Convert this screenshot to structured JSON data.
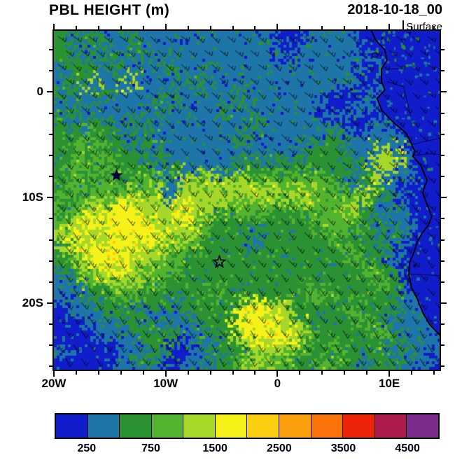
{
  "header": {
    "title": "PBL HEIGHT (m)",
    "datetime": "2018-10-18_00",
    "level": "Surface"
  },
  "axes": {
    "x_ticks": [
      {
        "label": "20W",
        "lon": -20
      },
      {
        "label": "10W",
        "lon": -10
      },
      {
        "label": "0",
        "lon": 0
      },
      {
        "label": "10E",
        "lon": 10
      }
    ],
    "y_ticks": [
      {
        "label": "0",
        "lat": 0
      },
      {
        "label": "10S",
        "lat": -10
      },
      {
        "label": "20S",
        "lat": -20
      }
    ],
    "minor_x_lons": [
      -18,
      -16,
      -14,
      -12,
      -8,
      -6,
      -4,
      -2,
      2,
      4,
      6,
      8,
      12,
      14
    ],
    "minor_y_lats": [
      4,
      2,
      -2,
      -4,
      -6,
      -8,
      -12,
      -14,
      -16,
      -18,
      -22,
      -24,
      -26
    ],
    "lon_range": [
      -20,
      14.5
    ],
    "lat_range": [
      -26.3,
      5.8
    ]
  },
  "colorbar": {
    "colors": [
      "#111ccb",
      "#1e75a8",
      "#2b9234",
      "#52b42e",
      "#a7d829",
      "#f4f218",
      "#fcce12",
      "#fb9f0d",
      "#f9730a",
      "#ee2409",
      "#ad1a4d",
      "#7e2b8e"
    ],
    "tick_labels": [
      "250",
      "750",
      "1500",
      "2500",
      "3500",
      "4500"
    ],
    "tick_edge_indices": [
      1,
      3,
      5,
      7,
      9,
      11
    ],
    "num_boxes": 12
  },
  "markers": [
    {
      "name": "filled-star-marker",
      "type": "filled",
      "lon": -14.4,
      "lat": -7.9
    },
    {
      "name": "open-star-marker",
      "type": "open",
      "lon": -5.2,
      "lat": -16.1
    }
  ],
  "chart_data": {
    "type": "heatmap",
    "title": "PBL HEIGHT (m)",
    "time_label": "2018-10-18_00",
    "level": "Surface",
    "units": "m",
    "lon_range": [
      -20,
      14.5
    ],
    "lat_range": [
      -26.3,
      5.8
    ],
    "bin_edges_m": [
      250,
      500,
      750,
      1000,
      1500,
      2000,
      2500,
      3000,
      3500,
      4000,
      4500
    ],
    "legend_position": "bottom",
    "grid_note": "28 columns (west to east, 20W to 14.5E) x 24 rows (north to south, 5.8N to 26.3S); each hex digit is a color-bin index into colorbar.colors (0 = <250 m ... 11 = >4500 m)",
    "grid_categories_rows_north_to_south": [
      "2121121111111111001111000000",
      "2212112111111111011111100100",
      "1221211121111111111111010010",
      "1241141111211111111111000000",
      "2112111121111211111100110000",
      "1211111211112111111001100000",
      "2122121111111121111110011000",
      "2232212111111211111221111000",
      "2323221211111111112221144100",
      "2332322121111222222222144100",
      "2323223314343433333321241100",
      "3233343414444444444333421000",
      "2344554445443333233334212100",
      "3455555445322222222333221100",
      "4544555544322212222232212100",
      "2455554433222222222223221000",
      "2345544332222222222222321000",
      "1234443322222222222222232000",
      "1122332222232222223322222100",
      "0112221212222454422223222110",
      "0011122111222555442222321110",
      "0001112221122455543222232111",
      "1000011200112244432232221211",
      "0000112101122343322322122110"
    ],
    "overlays": {
      "wind_barbs": "black wind barbs across whole domain, generally from the southeast",
      "coastline": "west African coastline from top-right (Cameroon/Gabon) to bottom-right (Namibia), land shaded in lowest PBL bin",
      "markers": "one filled star near 14.4W 7.9S, one open star near 5.5W 16S"
    }
  }
}
